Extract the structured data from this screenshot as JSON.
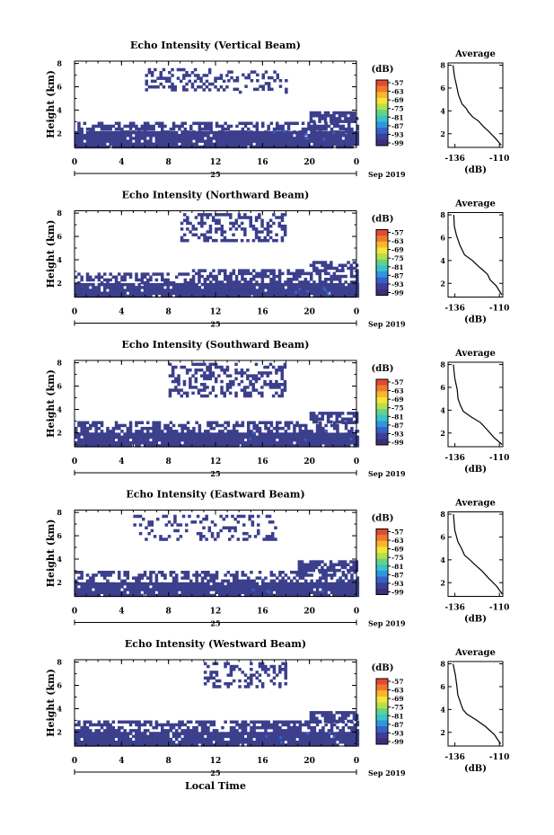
{
  "figure": {
    "xlabel": "Local Time",
    "date_label": "Sep 2019",
    "day_label": "25",
    "colorbar_unit": "(dB)",
    "colorbar_ticks": [
      "-57",
      "-63",
      "-69",
      "-75",
      "-81",
      "-87",
      "-93",
      "-99"
    ],
    "colorbar_colors": [
      "#e34a33",
      "#f07a2c",
      "#f8b62b",
      "#f6e43a",
      "#b5e04a",
      "#63d38a",
      "#38c4c8",
      "#2f96de",
      "#3561c8",
      "#3c3f9a",
      "#3b2f7a"
    ],
    "echo_color": "#3b3f8c",
    "avg_title": "Average",
    "avg_xlabel": "(dB)"
  },
  "chart_data": [
    {
      "type": "heatmap",
      "title": "Echo Intensity (Vertical Beam)",
      "ylabel": "Height (km)",
      "xticks": [
        "0",
        "4",
        "8",
        "12",
        "16",
        "20",
        "0"
      ],
      "yticks": [
        "2",
        "4",
        "6",
        "8"
      ],
      "xlim": [
        0,
        24
      ],
      "ylim": [
        0.8,
        8.2
      ],
      "echo_blocks": [
        {
          "x": [
            0,
            24
          ],
          "y": [
            0.8,
            2.2
          ],
          "density": 0.95
        },
        {
          "x": [
            0,
            24
          ],
          "y": [
            2.2,
            3.0
          ],
          "density": 0.55
        },
        {
          "x": [
            20,
            24
          ],
          "y": [
            3.0,
            3.9
          ],
          "density": 0.8
        },
        {
          "x": [
            6,
            13
          ],
          "y": [
            5.8,
            7.6
          ],
          "density": 0.35
        },
        {
          "x": [
            13,
            18
          ],
          "y": [
            5.6,
            7.4
          ],
          "density": 0.3
        }
      ]
    },
    {
      "type": "heatmap",
      "title": "Echo Intensity (Northward Beam)",
      "ylabel": "Height (km)",
      "xticks": [
        "0",
        "4",
        "8",
        "12",
        "16",
        "20",
        "0"
      ],
      "yticks": [
        "2",
        "4",
        "6",
        "8"
      ],
      "xlim": [
        0,
        24
      ],
      "ylim": [
        0.8,
        8.2
      ],
      "echo_blocks": [
        {
          "x": [
            0,
            24
          ],
          "y": [
            0.8,
            2.0
          ],
          "density": 0.95
        },
        {
          "x": [
            0,
            10
          ],
          "y": [
            2.0,
            2.9
          ],
          "density": 0.5
        },
        {
          "x": [
            10,
            24
          ],
          "y": [
            2.0,
            3.2
          ],
          "density": 0.65
        },
        {
          "x": [
            20,
            24
          ],
          "y": [
            3.2,
            3.9
          ],
          "density": 0.7
        },
        {
          "x": [
            9,
            18
          ],
          "y": [
            5.6,
            8.0
          ],
          "density": 0.45
        }
      ]
    },
    {
      "type": "heatmap",
      "title": "Echo Intensity (Southward Beam)",
      "ylabel": "Height (km)",
      "xticks": [
        "0",
        "4",
        "8",
        "12",
        "16",
        "20",
        "0"
      ],
      "yticks": [
        "2",
        "4",
        "6",
        "8"
      ],
      "xlim": [
        0,
        24
      ],
      "ylim": [
        0.8,
        8.2
      ],
      "echo_blocks": [
        {
          "x": [
            0,
            24
          ],
          "y": [
            0.8,
            2.0
          ],
          "density": 0.95
        },
        {
          "x": [
            0,
            24
          ],
          "y": [
            2.0,
            3.0
          ],
          "density": 0.55
        },
        {
          "x": [
            20,
            24
          ],
          "y": [
            3.0,
            3.8
          ],
          "density": 0.7
        },
        {
          "x": [
            8,
            18
          ],
          "y": [
            5.2,
            8.0
          ],
          "density": 0.4
        }
      ]
    },
    {
      "type": "heatmap",
      "title": "Echo Intensity (Eastward Beam)",
      "ylabel": "Height (km)",
      "xticks": [
        "0",
        "4",
        "8",
        "12",
        "16",
        "20",
        "0"
      ],
      "yticks": [
        "2",
        "4",
        "6",
        "8"
      ],
      "xlim": [
        0,
        24
      ],
      "ylim": [
        0.8,
        8.2
      ],
      "echo_blocks": [
        {
          "x": [
            0,
            24
          ],
          "y": [
            0.8,
            2.0
          ],
          "density": 0.95
        },
        {
          "x": [
            0,
            24
          ],
          "y": [
            2.0,
            3.0
          ],
          "density": 0.5
        },
        {
          "x": [
            19,
            24
          ],
          "y": [
            3.0,
            3.9
          ],
          "density": 0.75
        },
        {
          "x": [
            5,
            17
          ],
          "y": [
            5.8,
            7.8
          ],
          "density": 0.25
        }
      ]
    },
    {
      "type": "heatmap",
      "title": "Echo Intensity (Westward Beam)",
      "ylabel": "Height (km)",
      "xticks": [
        "0",
        "4",
        "8",
        "12",
        "16",
        "20",
        "0"
      ],
      "yticks": [
        "2",
        "4",
        "6",
        "8"
      ],
      "xlim": [
        0,
        24
      ],
      "ylim": [
        0.8,
        8.2
      ],
      "echo_blocks": [
        {
          "x": [
            0,
            24
          ],
          "y": [
            0.8,
            2.0
          ],
          "density": 0.95
        },
        {
          "x": [
            0,
            24
          ],
          "y": [
            2.0,
            3.0
          ],
          "density": 0.55
        },
        {
          "x": [
            20,
            24
          ],
          "y": [
            3.0,
            3.8
          ],
          "density": 0.75
        },
        {
          "x": [
            11,
            18
          ],
          "y": [
            5.8,
            8.0
          ],
          "density": 0.35
        }
      ]
    },
    {
      "type": "line",
      "title": "Average",
      "xlabel": "(dB)",
      "xticks": [
        "-136",
        "-110"
      ],
      "yticks": [
        "2",
        "4",
        "6",
        "8"
      ],
      "xlim": [
        -140,
        -108
      ],
      "ylim": [
        0.8,
        8.2
      ],
      "profiles": [
        {
          "x": [
            -108.5,
            -112,
            -116,
            -119,
            -122,
            -126,
            -128,
            -129,
            -132,
            -134,
            -135,
            -136,
            -137
          ],
          "y": [
            1.0,
            1.6,
            2.2,
            2.6,
            3.1,
            3.5,
            3.9,
            4.2,
            4.6,
            5.4,
            6.2,
            7.0,
            8.0
          ]
        },
        {
          "x": [
            -108.5,
            -112,
            -115,
            -117,
            -120,
            -123,
            -126,
            -130,
            -133,
            -135,
            -136,
            -137
          ],
          "y": [
            1.0,
            1.8,
            2.3,
            2.8,
            3.2,
            3.6,
            4.0,
            4.5,
            5.3,
            6.2,
            7.0,
            8.0
          ]
        },
        {
          "x": [
            -108.5,
            -113,
            -117,
            -121,
            -126,
            -131,
            -133,
            -134,
            -135,
            -136,
            -137
          ],
          "y": [
            1.0,
            1.6,
            2.3,
            2.9,
            3.4,
            3.9,
            4.4,
            5.0,
            5.8,
            6.8,
            8.0
          ]
        },
        {
          "x": [
            -108.5,
            -112,
            -116,
            -120,
            -124,
            -127,
            -130,
            -132,
            -134,
            -136,
            -137
          ],
          "y": [
            1.0,
            1.7,
            2.4,
            3.0,
            3.5,
            4.0,
            4.4,
            5.0,
            5.6,
            6.6,
            8.0
          ]
        },
        {
          "x": [
            -109,
            -113,
            -118,
            -124,
            -129,
            -131,
            -133,
            -134,
            -135,
            -136,
            -137
          ],
          "y": [
            1.0,
            1.8,
            2.5,
            3.1,
            3.6,
            4.0,
            4.6,
            5.3,
            6.0,
            7.0,
            8.0
          ]
        }
      ]
    }
  ]
}
